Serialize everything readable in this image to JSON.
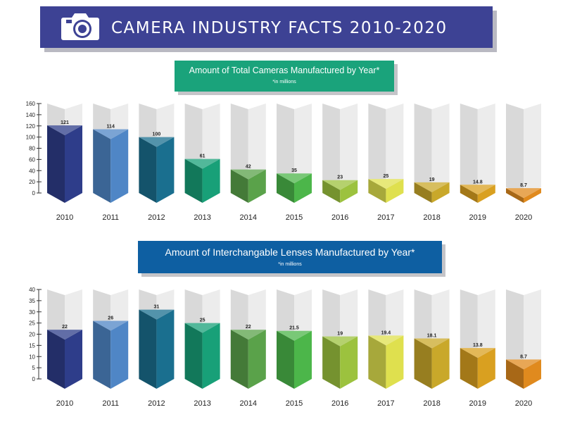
{
  "header": {
    "title": "CAMERA INDUSTRY FACTS 2010-2020",
    "icon": "camera-icon"
  },
  "colors": {
    "banner": "#3d4294",
    "bars": [
      "#2e3d8a",
      "#4f86c6",
      "#1a6f8f",
      "#18a078",
      "#5aa24a",
      "#4cb64a",
      "#9cc23e",
      "#dfe04e",
      "#c9a82a",
      "#d9a020",
      "#e08a1e"
    ],
    "background_bar": "#e7e7e7"
  },
  "chart_data": [
    {
      "type": "bar",
      "title": "Amount of Total Cameras Manufactured by Year*",
      "subtitle": "*in millions",
      "categories": [
        "2010",
        "2011",
        "2012",
        "2013",
        "2014",
        "2015",
        "2016",
        "2017",
        "2018",
        "2019",
        "2020"
      ],
      "values": [
        121,
        114,
        100,
        61,
        42,
        35,
        23,
        25,
        19,
        14.8,
        8.7
      ],
      "value_labels": [
        "121",
        "114",
        "100",
        "61",
        "42",
        "35",
        "23",
        "25",
        "19",
        "14.8",
        "8.7"
      ],
      "yticks": [
        0,
        20,
        40,
        60,
        80,
        100,
        120,
        140,
        160
      ],
      "ylim": [
        0,
        160
      ],
      "xlabel": "",
      "ylabel": "",
      "grid": false
    },
    {
      "type": "bar",
      "title": "Amount of Interchangable Lenses Manufactured by Year*",
      "subtitle": "*in millions",
      "categories": [
        "2010",
        "2011",
        "2012",
        "2013",
        "2014",
        "2015",
        "2016",
        "2017",
        "2018",
        "2019",
        "2020"
      ],
      "values": [
        22,
        26,
        31,
        25,
        22,
        21.5,
        19,
        19.4,
        18.1,
        13.8,
        8.7
      ],
      "value_labels": [
        "22",
        "26",
        "31",
        "25",
        "22",
        "21.5",
        "19",
        "19.4",
        "18.1",
        "13.8",
        "8.7"
      ],
      "yticks": [
        0,
        5,
        10,
        15,
        20,
        25,
        30,
        35,
        40
      ],
      "ylim": [
        0,
        40
      ],
      "xlabel": "",
      "ylabel": "",
      "grid": false
    }
  ]
}
